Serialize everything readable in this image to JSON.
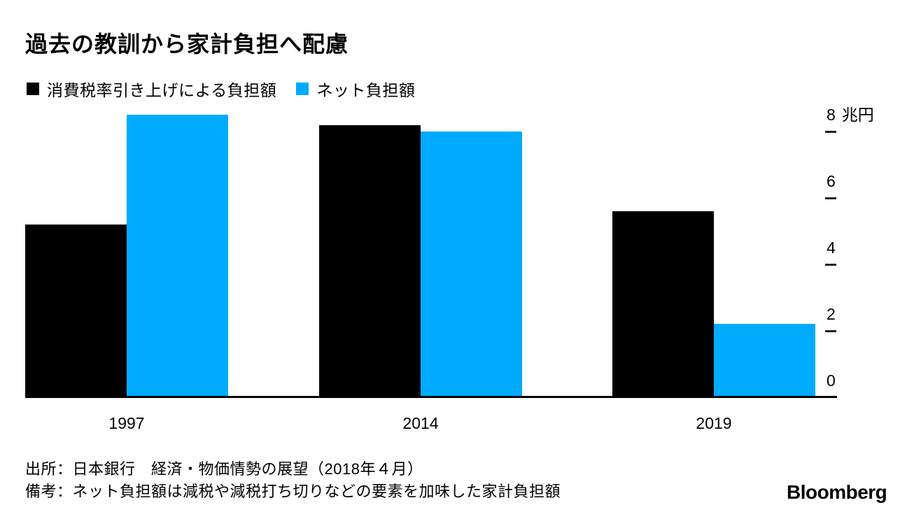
{
  "title": "過去の教訓から家計負担へ配慮",
  "legend": [
    {
      "label": "消費税率引き上げによる負担額",
      "color": "#000000"
    },
    {
      "label": "ネット負担額",
      "color": "#00ABFF"
    }
  ],
  "chart_data": {
    "type": "bar",
    "categories": [
      "1997",
      "2014",
      "2019"
    ],
    "series": [
      {
        "name": "消費税率引き上げによる負担額",
        "color": "#000000",
        "values": [
          5.2,
          8.2,
          5.6
        ]
      },
      {
        "name": "ネット負担額",
        "color": "#00ABFF",
        "values": [
          8.5,
          8.0,
          2.2
        ]
      }
    ],
    "unit": "兆円",
    "y_ticks": [
      0,
      2,
      4,
      6,
      8
    ],
    "ylim": [
      0,
      8.6
    ],
    "axis_side": "right",
    "grid": false,
    "legend_position": "top-left"
  },
  "footer": {
    "source": "出所：日本銀行　経済・物価情勢の展望（2018年４月）",
    "note": "備考：ネット負担額は減税や減税打ち切りなどの要素を加味した家計負担額",
    "brand": "Bloomberg"
  }
}
